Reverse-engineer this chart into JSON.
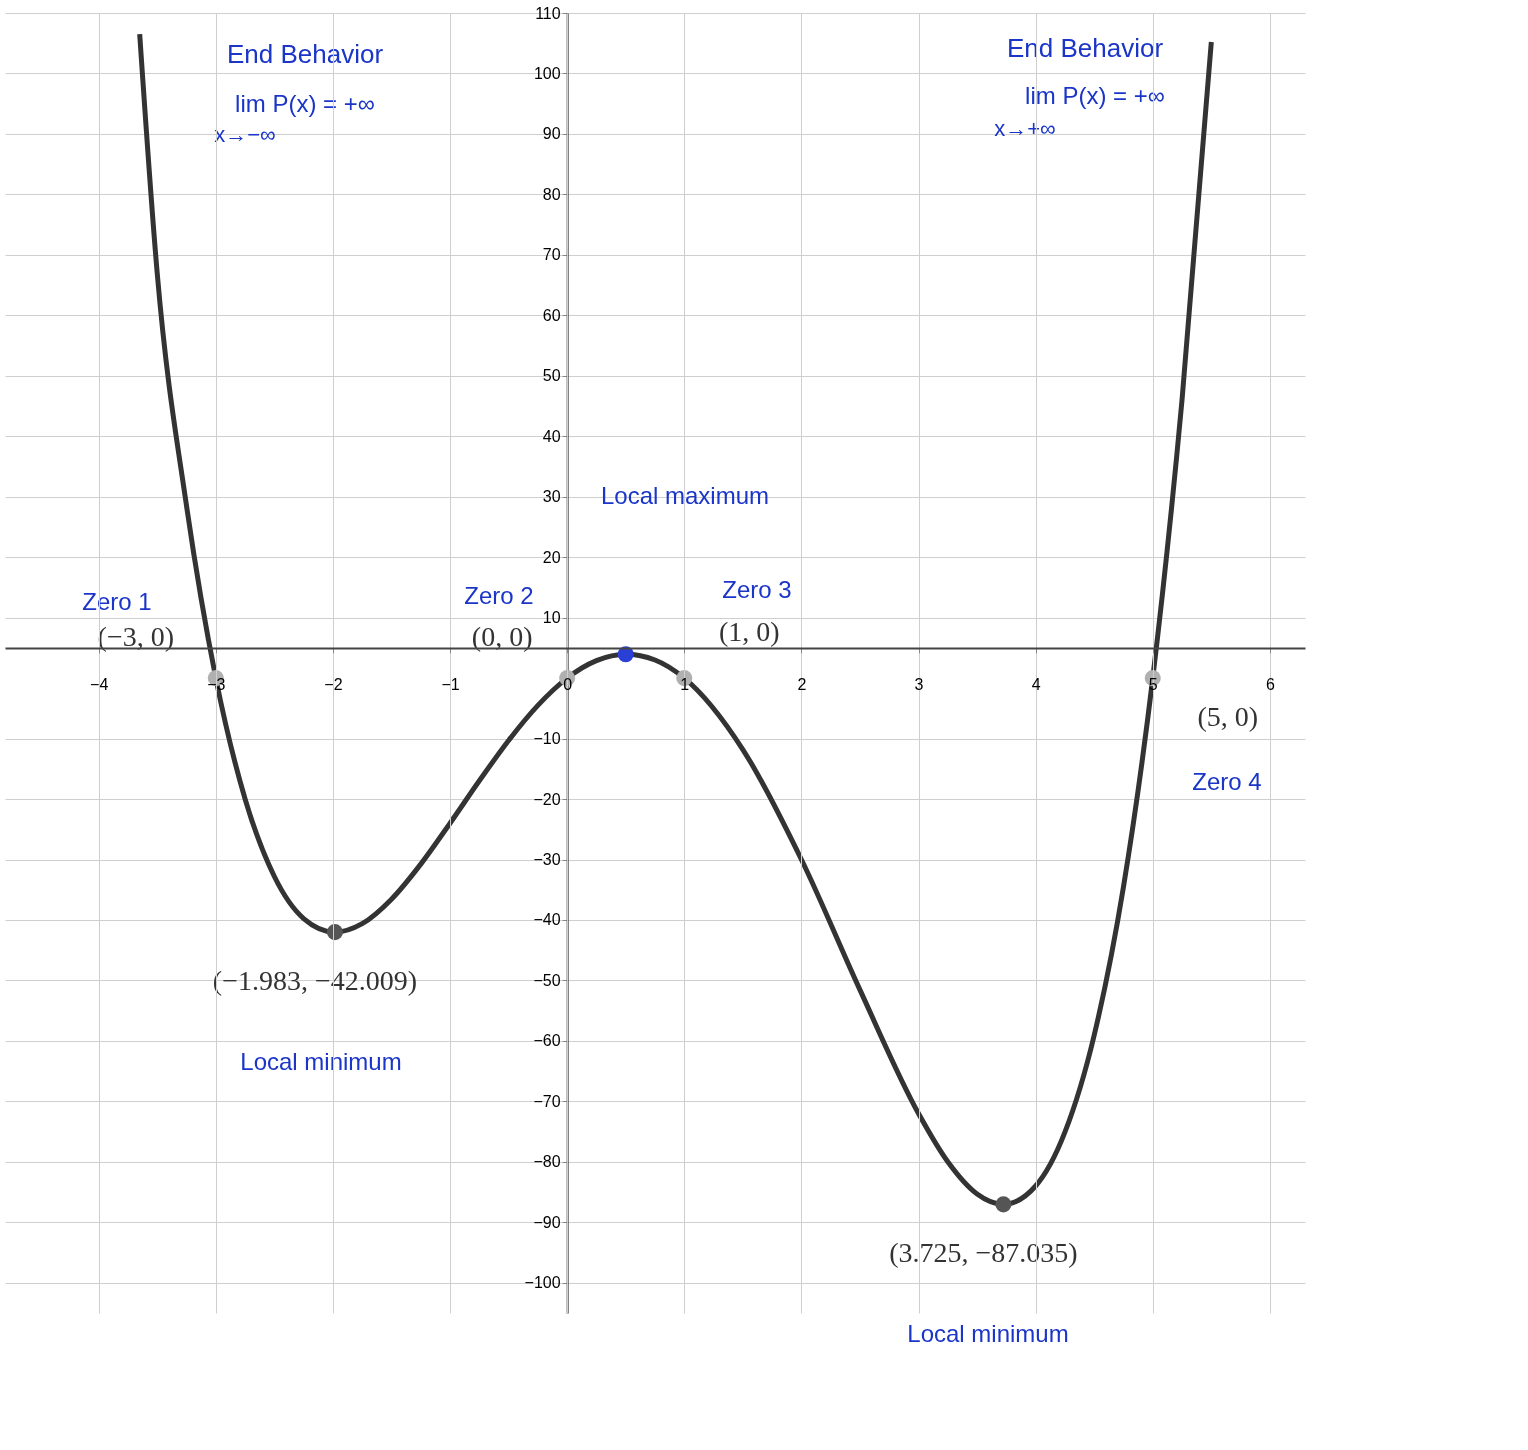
{
  "chart_data": {
    "type": "line",
    "xlim": [
      -4.8,
      6.3
    ],
    "ylim": [
      -105,
      110
    ],
    "xticks": [
      -4,
      -3,
      -2,
      -1,
      0,
      1,
      2,
      3,
      4,
      5,
      6
    ],
    "yticks": [
      -100,
      -90,
      -80,
      -70,
      -60,
      -50,
      -40,
      -30,
      -20,
      -10,
      10,
      20,
      30,
      40,
      50,
      60,
      70,
      80,
      90,
      100,
      110
    ],
    "grid": true,
    "series": [
      {
        "color": "#333333",
        "x": [
          -3.65,
          -3.5,
          -3.25,
          -3,
          -2.75,
          -2.5,
          -2.25,
          -1.983,
          -1.75,
          -1.5,
          -1.25,
          -1,
          -0.75,
          -0.5,
          -0.25,
          0,
          0.25,
          0.5,
          0.75,
          1,
          1.5,
          2,
          2.5,
          3,
          3.25,
          3.5,
          3.725,
          4,
          4.25,
          4.5,
          4.75,
          5,
          5.25,
          5.5
        ],
        "values": [
          106.5,
          66.9,
          28.49,
          0,
          -19.98,
          -32.81,
          -39.76,
          -42.009,
          -40.61,
          -36.56,
          -30.76,
          -24,
          -16.98,
          -10.31,
          -4.51,
          0,
          2.89,
          3.94,
          2.99,
          0,
          -11.81,
          -30,
          -51.56,
          -72,
          -79.98,
          -85.31,
          -87.035,
          -84,
          -75.1,
          -59.06,
          -34.51,
          0,
          46.02,
          105.19
        ]
      },
      {
        "type": "scatter",
        "x": [
          -3,
          0,
          1,
          5,
          0.5,
          -1.983,
          3.725
        ],
        "values": [
          0,
          0,
          0,
          0,
          3.94,
          -42.009,
          -87.035
        ],
        "colors": [
          "#b0b0b0",
          "#b0b0b0",
          "#b0b0b0",
          "#b0b0b0",
          "#2a3fd6",
          "#555555",
          "#555555"
        ]
      }
    ],
    "annotations": [
      "End Behavior",
      "lim P(x) = +∞",
      "x→−∞",
      "End Behavior",
      "lim P(x) = +∞",
      "x→+∞",
      "Zero 1",
      "Zero 2",
      "Zero 3",
      "Zero 4",
      "Local maximum",
      "Local minimum",
      "Local minimum",
      {
        "text": "(−3, 0)",
        "x": -3,
        "y": 0
      },
      {
        "text": "(0, 0)",
        "x": 0,
        "y": 0
      },
      {
        "text": "(1, 0)",
        "x": 1,
        "y": 0
      },
      {
        "text": "(5, 0)",
        "x": 5,
        "y": 0
      },
      {
        "text": "(−1.983, −42.009)",
        "x": -1.983,
        "y": -42.009
      },
      {
        "text": "(3.725, −87.035)",
        "x": 3.725,
        "y": -87.035
      }
    ]
  }
}
